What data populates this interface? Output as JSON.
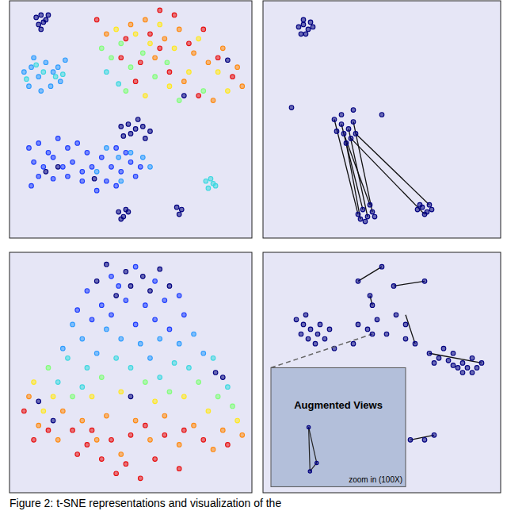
{
  "caption": "Figure 2: t-SNE representations and visualization of the",
  "chart_data": [
    {
      "type": "scatter",
      "xlim": [
        0,
        100
      ],
      "ylim": [
        0,
        100
      ],
      "tick_labels": false,
      "grid": false,
      "marker": "circle",
      "series": [
        {
          "color": "#00007f",
          "x": [
            11,
            13,
            15,
            12,
            14,
            16,
            13,
            46,
            49,
            52,
            55,
            50,
            53,
            58,
            47,
            56,
            45,
            47,
            49,
            46,
            48,
            69,
            71,
            70,
            20,
            15,
            35,
            72,
            90
          ],
          "values": [
            93,
            94,
            92,
            90,
            91,
            94,
            88,
            47,
            48,
            46,
            47,
            44,
            50,
            45,
            43,
            42,
            11,
            9,
            11,
            8,
            12,
            13,
            12,
            10,
            30,
            28,
            25,
            60,
            75
          ]
        },
        {
          "color": "#1c3cff",
          "x": [
            8,
            12,
            16,
            20,
            24,
            28,
            32,
            10,
            14,
            18,
            22,
            26,
            30,
            34,
            38,
            42,
            46,
            50,
            54,
            40,
            44,
            36,
            30,
            24,
            18,
            12,
            9,
            48,
            44,
            52
          ],
          "values": [
            38,
            40,
            36,
            42,
            38,
            40,
            36,
            32,
            30,
            34,
            30,
            32,
            28,
            30,
            34,
            30,
            28,
            32,
            30,
            24,
            22,
            20,
            24,
            26,
            25,
            26,
            22,
            36,
            38,
            26
          ]
        },
        {
          "color": "#2c9cff",
          "x": [
            40,
            45,
            50,
            55,
            58,
            36,
            46,
            6,
            9,
            12,
            15,
            18,
            21,
            8,
            13,
            17,
            20,
            23,
            10
          ],
          "values": [
            38,
            34,
            36,
            34,
            30,
            28,
            24,
            70,
            72,
            68,
            74,
            70,
            66,
            64,
            62,
            64,
            72,
            75,
            76
          ]
        },
        {
          "color": "#3cd8e0",
          "x": [
            14,
            19,
            7,
            22,
            11,
            81,
            83,
            85,
            82,
            84,
            40,
            45
          ],
          "values": [
            70,
            68,
            67,
            69,
            73,
            24,
            25,
            22,
            21,
            23,
            70,
            65
          ]
        },
        {
          "color": "#80ff78",
          "x": [
            38,
            42,
            46,
            50,
            55,
            60,
            65,
            70,
            80,
            48
          ],
          "values": [
            80,
            76,
            82,
            72,
            78,
            68,
            74,
            58,
            62,
            62
          ]
        },
        {
          "color": "#ffe820",
          "x": [
            44,
            52,
            58,
            62,
            68,
            74,
            78,
            86,
            90,
            66,
            56
          ],
          "values": [
            88,
            86,
            82,
            90,
            80,
            70,
            84,
            70,
            62,
            64,
            60
          ]
        },
        {
          "color": "#ff8a10",
          "x": [
            40,
            50,
            56,
            64,
            70,
            76,
            82,
            88,
            94,
            60,
            72,
            84,
            96
          ],
          "values": [
            86,
            90,
            92,
            84,
            88,
            78,
            74,
            80,
            72,
            76,
            66,
            58,
            64
          ]
        },
        {
          "color": "#e81010",
          "x": [
            36,
            48,
            54,
            58,
            62,
            66,
            74,
            80,
            86,
            92,
            46,
            52,
            68,
            78,
            62
          ],
          "values": [
            92,
            84,
            74,
            86,
            80,
            70,
            82,
            88,
            76,
            68,
            76,
            66,
            94,
            60,
            96
          ]
        }
      ]
    },
    {
      "type": "scatter",
      "xlim": [
        0,
        100
      ],
      "ylim": [
        0,
        100
      ],
      "tick_labels": false,
      "grid": false,
      "marker": "circle",
      "series": [
        {
          "color": "#00007f",
          "x": [
            15,
            17,
            19,
            21,
            16,
            18,
            20,
            17,
            12,
            38,
            50,
            30,
            33,
            36,
            38,
            34,
            37,
            31,
            39,
            35,
            33,
            40,
            42,
            44,
            46,
            43,
            45,
            41,
            47,
            65,
            67,
            69,
            71,
            68,
            66,
            70
          ],
          "values": [
            89,
            90,
            88,
            89,
            86,
            86,
            91,
            92,
            55,
            54,
            52,
            50,
            48,
            46,
            49,
            44,
            42,
            45,
            44,
            40,
            52,
            10,
            12,
            9,
            11,
            7,
            14,
            8,
            9,
            12,
            13,
            11,
            12,
            10,
            14,
            14
          ]
        }
      ],
      "segments": [
        {
          "x": [
            36,
            44
          ],
          "values": [
            46,
            9
          ]
        },
        {
          "x": [
            33,
            42
          ],
          "values": [
            48,
            12
          ]
        },
        {
          "x": [
            38,
            46
          ],
          "values": [
            49,
            11
          ]
        },
        {
          "x": [
            35,
            41
          ],
          "values": [
            40,
            8
          ]
        },
        {
          "x": [
            37,
            68
          ],
          "values": [
            42,
            10
          ]
        },
        {
          "x": [
            39,
            70
          ],
          "values": [
            44,
            14
          ]
        },
        {
          "x": [
            34,
            45
          ],
          "values": [
            44,
            14
          ]
        },
        {
          "x": [
            30,
            40
          ],
          "values": [
            50,
            10
          ]
        }
      ]
    },
    {
      "type": "scatter",
      "xlim": [
        0,
        100
      ],
      "ylim": [
        0,
        100
      ],
      "tick_labels": false,
      "grid": false,
      "marker": "circle",
      "series": [
        {
          "color": "#00007f",
          "x": [
            40,
            48,
            55,
            62,
            50,
            36,
            44,
            58,
            66,
            85,
            88,
            18,
            12,
            50
          ],
          "values": [
            95,
            92,
            90,
            93,
            86,
            88,
            82,
            84,
            86,
            50,
            48,
            30,
            38,
            40
          ]
        },
        {
          "color": "#1c3cff",
          "x": [
            42,
            52,
            60,
            45,
            32,
            38,
            48,
            56,
            64,
            70,
            28,
            72,
            34,
            42,
            52,
            60,
            66
          ],
          "values": [
            90,
            94,
            88,
            86,
            84,
            78,
            80,
            78,
            80,
            82,
            76,
            74,
            72,
            74,
            70,
            72,
            68
          ]
        },
        {
          "color": "#2c9cff",
          "x": [
            26,
            30,
            40,
            46,
            54,
            62,
            70,
            76,
            22,
            80,
            36,
            58
          ],
          "values": [
            70,
            64,
            68,
            64,
            62,
            64,
            62,
            66,
            60,
            58,
            58,
            56
          ]
        },
        {
          "color": "#3cd8e0",
          "x": [
            24,
            32,
            44,
            50,
            68,
            74,
            84,
            90,
            20,
            62,
            30
          ],
          "values": [
            56,
            52,
            56,
            52,
            54,
            52,
            56,
            44,
            46,
            48,
            44
          ]
        },
        {
          "color": "#80ff78",
          "x": [
            16,
            38,
            56,
            78,
            86,
            26,
            66,
            92
          ],
          "values": [
            52,
            48,
            46,
            46,
            40,
            40,
            42,
            36
          ]
        },
        {
          "color": "#ffe820",
          "x": [
            10,
            18,
            34,
            46,
            72,
            82,
            94,
            60,
            14
          ],
          "values": [
            46,
            40,
            40,
            42,
            40,
            34,
            30,
            38,
            34
          ]
        },
        {
          "color": "#ff8a10",
          "x": [
            8,
            12,
            22,
            30,
            40,
            52,
            64,
            76,
            88,
            20,
            36,
            58,
            70,
            84,
            96,
            46
          ],
          "values": [
            40,
            28,
            34,
            30,
            32,
            30,
            32,
            28,
            26,
            22,
            22,
            22,
            20,
            18,
            24,
            16
          ]
        },
        {
          "color": "#e81010",
          "x": [
            6,
            10,
            16,
            26,
            34,
            42,
            50,
            56,
            64,
            72,
            80,
            90,
            28,
            38,
            48,
            60,
            70,
            54,
            44,
            32
          ],
          "values": [
            34,
            22,
            26,
            26,
            26,
            22,
            24,
            28,
            24,
            26,
            22,
            20,
            16,
            14,
            12,
            14,
            10,
            6,
            8,
            20
          ]
        }
      ]
    },
    {
      "type": "scatter",
      "xlim": [
        0,
        100
      ],
      "ylim": [
        0,
        100
      ],
      "tick_labels": false,
      "grid": false,
      "marker": "circle",
      "series": [
        {
          "color": "#00007f",
          "x": [
            14,
            17,
            20,
            23,
            16,
            19,
            22,
            26,
            28,
            30,
            24,
            18,
            40,
            50,
            45,
            46,
            55,
            68,
            70,
            74,
            78,
            80,
            82,
            84,
            86,
            88,
            90,
            76,
            80,
            84,
            88,
            92,
            72,
            64,
            60,
            40,
            44,
            48,
            52,
            56,
            60,
            38,
            62,
            68,
            72
          ],
          "values": [
            72,
            70,
            68,
            66,
            66,
            64,
            62,
            64,
            68,
            60,
            70,
            74,
            88,
            94,
            82,
            78,
            86,
            88,
            58,
            56,
            55,
            53,
            52,
            54,
            52,
            50,
            52,
            60,
            58,
            50,
            56,
            54,
            54,
            62,
            64,
            70,
            68,
            72,
            66,
            74,
            70,
            62,
            22,
            22,
            24
          ]
        }
      ],
      "segments": [
        {
          "x": [
            40,
            50
          ],
          "values": [
            88,
            94
          ]
        },
        {
          "x": [
            45,
            46
          ],
          "values": [
            82,
            78
          ]
        },
        {
          "x": [
            55,
            68
          ],
          "values": [
            86,
            88
          ]
        },
        {
          "x": [
            64,
            60
          ],
          "values": [
            62,
            74
          ]
        },
        {
          "x": [
            70,
            92
          ],
          "values": [
            58,
            54
          ]
        },
        {
          "x": [
            62,
            72
          ],
          "values": [
            22,
            24
          ]
        }
      ],
      "inset": {
        "title": "Augmented Views",
        "label": "zoom in (100X)",
        "xlim": [
          0,
          100
        ],
        "ylim": [
          0,
          100
        ],
        "x": [
          28,
          29,
          34
        ],
        "values": [
          50,
          13,
          20
        ],
        "anchor": {
          "x": 46,
          "y": 66
        }
      }
    }
  ]
}
